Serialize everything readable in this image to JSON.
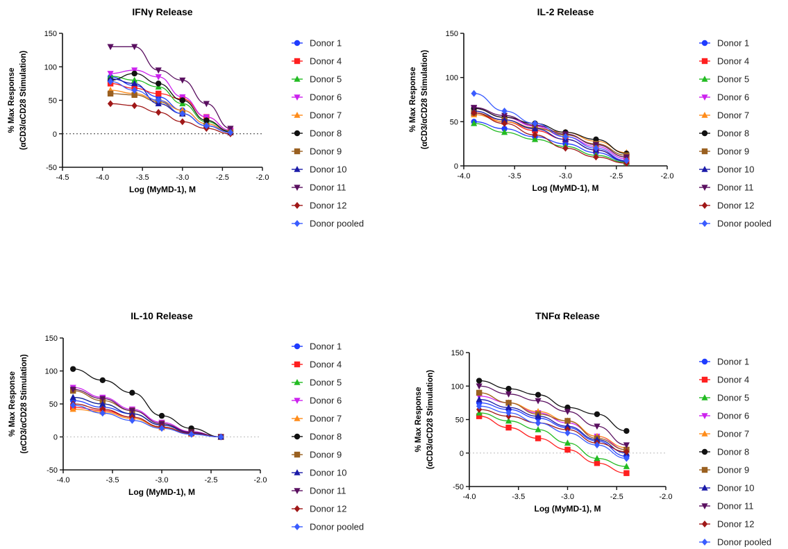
{
  "chart_data": [
    {
      "type": "line",
      "title": "IFNγ Release",
      "xlabel": "Log (MyMD-1), M",
      "ylabel": [
        "% Max Response",
        "(αCD3/αCD28 Stimulation)"
      ],
      "xlim": [
        -4.5,
        -2.0
      ],
      "ylim": [
        -50,
        150
      ],
      "xticks": [
        "-4.5",
        "-4.0",
        "-3.5",
        "-3.0",
        "-2.5",
        "-2.0"
      ],
      "yticks": [
        "-50",
        "0",
        "50",
        "100",
        "150"
      ],
      "x": [
        -3.9,
        -3.6,
        -3.3,
        -3.0,
        -2.7,
        -2.4
      ],
      "reference_line": 0,
      "series": [
        {
          "name": "Donor 1",
          "values": [
            85,
            72,
            55,
            35,
            15,
            3
          ]
        },
        {
          "name": "Donor 4",
          "values": [
            75,
            68,
            60,
            52,
            25,
            5
          ]
        },
        {
          "name": "Donor 5",
          "values": [
            86,
            80,
            70,
            45,
            18,
            4
          ]
        },
        {
          "name": "Donor 6",
          "values": [
            90,
            95,
            85,
            55,
            25,
            5
          ]
        },
        {
          "name": "Donor 7",
          "values": [
            65,
            60,
            50,
            35,
            15,
            2
          ]
        },
        {
          "name": "Donor 8",
          "values": [
            80,
            90,
            75,
            50,
            20,
            3
          ]
        },
        {
          "name": "Donor 9",
          "values": [
            60,
            58,
            48,
            30,
            12,
            2
          ]
        },
        {
          "name": "Donor 10",
          "values": [
            82,
            75,
            45,
            30,
            12,
            2
          ]
        },
        {
          "name": "Donor 11",
          "values": [
            130,
            130,
            95,
            80,
            45,
            8
          ]
        },
        {
          "name": "Donor 12",
          "values": [
            45,
            42,
            32,
            18,
            8,
            0
          ]
        },
        {
          "name": "Donor pooled",
          "values": [
            78,
            65,
            50,
            30,
            12,
            2
          ]
        }
      ]
    },
    {
      "type": "line",
      "title": "IL-2 Release",
      "xlabel": "Log (MyMD-1), M",
      "ylabel": [
        "% Max Response",
        "(αCD3/αCD28 Stimulation)"
      ],
      "xlim": [
        -4.0,
        -2.0
      ],
      "ylim": [
        0,
        150
      ],
      "xticks": [
        "-4.0",
        "-3.5",
        "-3.0",
        "-2.5",
        "-2.0"
      ],
      "yticks": [
        "0",
        "50",
        "100",
        "150"
      ],
      "x": [
        -3.9,
        -3.6,
        -3.3,
        -3.0,
        -2.7,
        -2.4
      ],
      "reference_line": null,
      "series": [
        {
          "name": "Donor 1",
          "values": [
            50,
            42,
            33,
            25,
            15,
            5
          ]
        },
        {
          "name": "Donor 4",
          "values": [
            60,
            50,
            40,
            30,
            18,
            6
          ]
        },
        {
          "name": "Donor 5",
          "values": [
            48,
            38,
            30,
            22,
            12,
            4
          ]
        },
        {
          "name": "Donor 6",
          "values": [
            65,
            55,
            45,
            33,
            22,
            8
          ]
        },
        {
          "name": "Donor 7",
          "values": [
            58,
            50,
            42,
            38,
            28,
            15
          ]
        },
        {
          "name": "Donor 8",
          "values": [
            65,
            55,
            48,
            38,
            30,
            14
          ]
        },
        {
          "name": "Donor 9",
          "values": [
            60,
            52,
            43,
            35,
            25,
            12
          ]
        },
        {
          "name": "Donor 10",
          "values": [
            62,
            52,
            42,
            30,
            18,
            5
          ]
        },
        {
          "name": "Donor 11",
          "values": [
            66,
            57,
            46,
            36,
            24,
            10
          ]
        },
        {
          "name": "Donor 12",
          "values": [
            60,
            48,
            35,
            20,
            10,
            3
          ]
        },
        {
          "name": "Donor pooled",
          "values": [
            82,
            62,
            48,
            33,
            20,
            6
          ]
        }
      ]
    },
    {
      "type": "line",
      "title": "IL-10 Release",
      "xlabel": "Log (MyMD-1), M",
      "ylabel": [
        "% Max Response",
        "(αCD3/αCD28 Stimulation)"
      ],
      "xlim": [
        -4.0,
        -2.0
      ],
      "ylim": [
        -50,
        150
      ],
      "xticks": [
        "-4.0",
        "-3.5",
        "-3.0",
        "-2.5",
        "-2.0"
      ],
      "yticks": [
        "-50",
        "0",
        "50",
        "100",
        "150"
      ],
      "x": [
        -3.9,
        -3.6,
        -3.3,
        -3.0,
        -2.7,
        -2.4
      ],
      "reference_line": 0,
      "series": [
        {
          "name": "Donor 1",
          "values": [
            55,
            45,
            35,
            18,
            6,
            0
          ]
        },
        {
          "name": "Donor 4",
          "values": [
            45,
            40,
            30,
            15,
            5,
            0
          ]
        },
        {
          "name": "Donor 5",
          "values": [
            60,
            50,
            35,
            18,
            6,
            0
          ]
        },
        {
          "name": "Donor 6",
          "values": [
            75,
            60,
            42,
            22,
            8,
            0
          ]
        },
        {
          "name": "Donor 7",
          "values": [
            42,
            38,
            28,
            14,
            5,
            0
          ]
        },
        {
          "name": "Donor 8",
          "values": [
            103,
            86,
            67,
            32,
            13,
            0
          ]
        },
        {
          "name": "Donor 9",
          "values": [
            70,
            55,
            40,
            20,
            7,
            0
          ]
        },
        {
          "name": "Donor 10",
          "values": [
            60,
            50,
            35,
            18,
            6,
            0
          ]
        },
        {
          "name": "Donor 11",
          "values": [
            72,
            58,
            40,
            20,
            7,
            0
          ]
        },
        {
          "name": "Donor 12",
          "values": [
            50,
            42,
            30,
            15,
            5,
            0
          ]
        },
        {
          "name": "Donor pooled",
          "values": [
            48,
            36,
            25,
            13,
            4,
            0
          ]
        }
      ]
    },
    {
      "type": "line",
      "title": "TNFα Release",
      "xlabel": "Log (MyMD-1), M",
      "ylabel": [
        "% Max Response",
        "(αCD3/αCD28 Stimulation)"
      ],
      "xlim": [
        -4.0,
        -2.0
      ],
      "ylim": [
        -50,
        150
      ],
      "xticks": [
        "-4.0",
        "-3.5",
        "-3.0",
        "-2.5",
        "-2.0"
      ],
      "yticks": [
        "-50",
        "0",
        "50",
        "100",
        "150"
      ],
      "x": [
        -3.9,
        -3.6,
        -3.3,
        -3.0,
        -2.7,
        -2.4
      ],
      "reference_line": 0,
      "series": [
        {
          "name": "Donor 1",
          "values": [
            75,
            65,
            52,
            38,
            18,
            -5
          ]
        },
        {
          "name": "Donor 4",
          "values": [
            55,
            38,
            22,
            5,
            -15,
            -30
          ]
        },
        {
          "name": "Donor 5",
          "values": [
            60,
            48,
            35,
            15,
            -8,
            -20
          ]
        },
        {
          "name": "Donor 6",
          "values": [
            85,
            75,
            60,
            45,
            25,
            5
          ]
        },
        {
          "name": "Donor 7",
          "values": [
            90,
            75,
            62,
            48,
            25,
            8
          ]
        },
        {
          "name": "Donor 8",
          "values": [
            108,
            96,
            87,
            68,
            58,
            33
          ]
        },
        {
          "name": "Donor 9",
          "values": [
            90,
            75,
            58,
            48,
            22,
            5
          ]
        },
        {
          "name": "Donor 10",
          "values": [
            80,
            68,
            55,
            40,
            20,
            0
          ]
        },
        {
          "name": "Donor 11",
          "values": [
            100,
            88,
            78,
            62,
            40,
            12
          ]
        },
        {
          "name": "Donor 12",
          "values": [
            65,
            55,
            45,
            35,
            15,
            2
          ]
        },
        {
          "name": "Donor pooled",
          "values": [
            70,
            60,
            45,
            30,
            12,
            -8
          ]
        }
      ]
    }
  ],
  "series_styles": [
    {
      "color": "#1f3cff",
      "marker": "circle"
    },
    {
      "color": "#ff1f1f",
      "marker": "square"
    },
    {
      "color": "#22bb22",
      "marker": "triangle-up"
    },
    {
      "color": "#cc22ee",
      "marker": "triangle-down"
    },
    {
      "color": "#ff8c1a",
      "marker": "triangle-up"
    },
    {
      "color": "#111111",
      "marker": "circle"
    },
    {
      "color": "#9a6020",
      "marker": "square"
    },
    {
      "color": "#1a1aa8",
      "marker": "triangle-up"
    },
    {
      "color": "#5a1060",
      "marker": "triangle-down"
    },
    {
      "color": "#a01818",
      "marker": "diamond"
    },
    {
      "color": "#3a5cff",
      "marker": "diamond"
    }
  ]
}
